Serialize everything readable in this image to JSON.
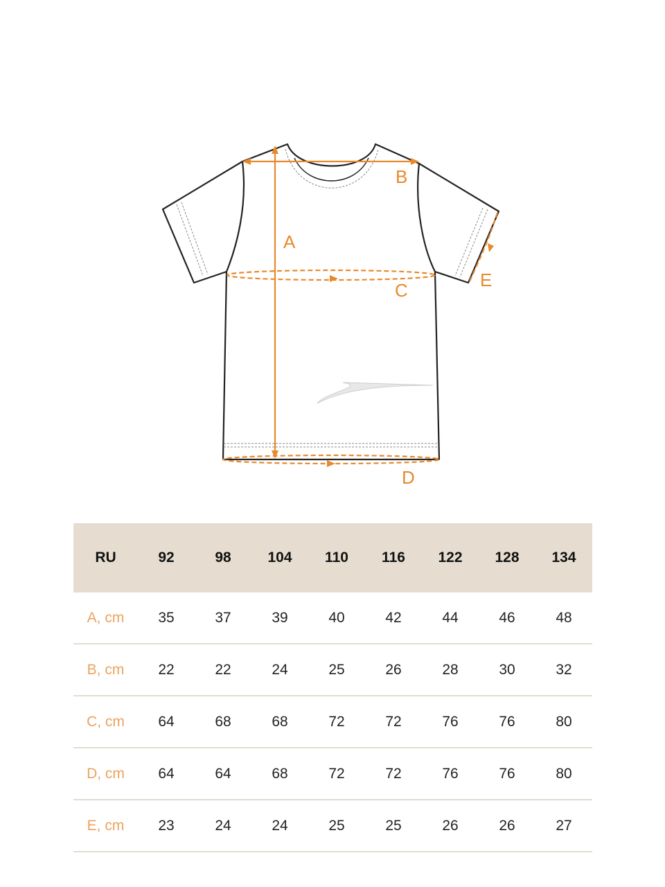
{
  "diagram": {
    "labels": [
      "A",
      "B",
      "C",
      "D",
      "E"
    ],
    "accent_color": "#e8892a"
  },
  "table": {
    "header": [
      "RU",
      "92",
      "98",
      "104",
      "110",
      "116",
      "122",
      "128",
      "134"
    ],
    "rows": [
      {
        "label": "A, cm",
        "values": [
          "35",
          "37",
          "39",
          "40",
          "42",
          "44",
          "46",
          "48"
        ]
      },
      {
        "label": "B, cm",
        "values": [
          "22",
          "22",
          "24",
          "25",
          "26",
          "28",
          "30",
          "32"
        ]
      },
      {
        "label": "C, cm",
        "values": [
          "64",
          "68",
          "68",
          "72",
          "72",
          "76",
          "76",
          "80"
        ]
      },
      {
        "label": "D, cm",
        "values": [
          "64",
          "64",
          "68",
          "72",
          "72",
          "76",
          "76",
          "80"
        ]
      },
      {
        "label": "E, cm",
        "values": [
          "23",
          "24",
          "24",
          "25",
          "25",
          "26",
          "26",
          "27"
        ]
      }
    ],
    "header_bg": "#e6ddd0",
    "label_color": "#eaa35e"
  }
}
